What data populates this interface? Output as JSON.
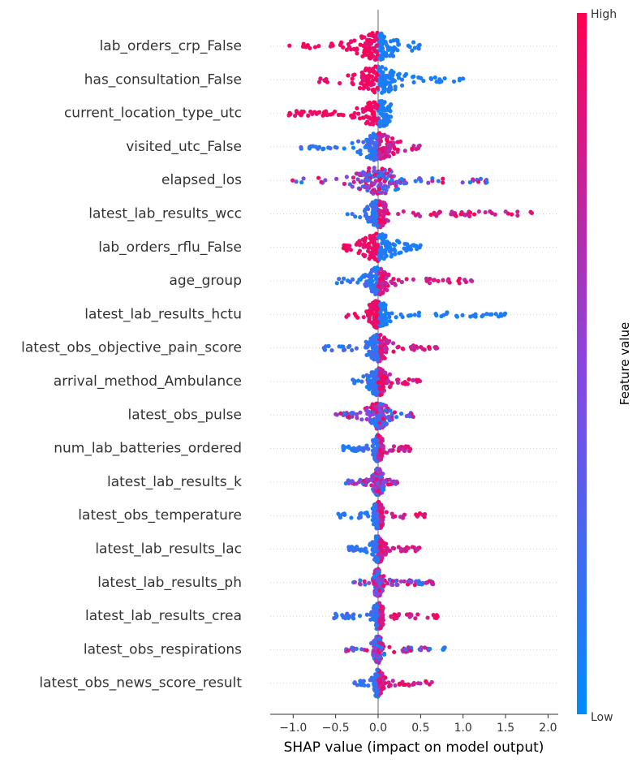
{
  "chart_data": {
    "type": "scatter",
    "subtype": "shap-beeswarm",
    "xlabel": "SHAP value (impact on model output)",
    "xlim": [
      -1.27,
      2.12
    ],
    "xticks": [
      -1.0,
      -0.5,
      0.0,
      0.5,
      1.0,
      1.5,
      2.0
    ],
    "xtick_labels": [
      "−1.0",
      "−0.5",
      "0.0",
      "0.5",
      "1.0",
      "1.5",
      "2.0"
    ],
    "grid": "horizontal dotted per feature",
    "colorbar": {
      "label": "Feature value",
      "high_label": "High",
      "low_label": "Low",
      "high_color": "#ff0051",
      "low_color": "#008bfb"
    },
    "features": [
      {
        "name": "lab_orders_crp_False",
        "range": [
          -1.1,
          0.5
        ],
        "low_side": "right",
        "spread": 0.2
      },
      {
        "name": "has_consultation_False",
        "range": [
          -0.75,
          1.0
        ],
        "low_side": "right",
        "spread": 0.2
      },
      {
        "name": "current_location_type_utc",
        "range": [
          -1.05,
          0.15
        ],
        "low_side": "right",
        "spread": 0.15
      },
      {
        "name": "visited_utc_False",
        "range": [
          -0.95,
          0.5
        ],
        "low_side": "left",
        "spread": 0.15
      },
      {
        "name": "elapsed_los",
        "range": [
          -1.1,
          1.37
        ],
        "low_side": "mixed",
        "spread": 0.2
      },
      {
        "name": "latest_lab_results_wcc",
        "range": [
          -0.5,
          2.0
        ],
        "low_side": "left",
        "spread": 0.1
      },
      {
        "name": "lab_orders_rflu_False",
        "range": [
          -0.45,
          0.5
        ],
        "low_side": "right",
        "spread": 0.15
      },
      {
        "name": "age_group",
        "range": [
          -0.5,
          1.2
        ],
        "low_side": "left",
        "spread": 0.1
      },
      {
        "name": "latest_lab_results_hctu",
        "range": [
          -0.5,
          1.57
        ],
        "low_side": "right",
        "spread": 0.1
      },
      {
        "name": "latest_obs_objective_pain_score",
        "range": [
          -0.65,
          0.7
        ],
        "low_side": "left",
        "spread": 0.1
      },
      {
        "name": "arrival_method_Ambulance",
        "range": [
          -0.3,
          0.5
        ],
        "low_side": "left",
        "spread": 0.1
      },
      {
        "name": "latest_obs_pulse",
        "range": [
          -0.5,
          0.45
        ],
        "low_side": "mixed",
        "spread": 0.1
      },
      {
        "name": "num_lab_batteries_ordered",
        "range": [
          -0.45,
          0.4
        ],
        "low_side": "left",
        "spread": 0.05
      },
      {
        "name": "latest_lab_results_k",
        "range": [
          -0.4,
          0.25
        ],
        "low_side": "mixed",
        "spread": 0.05
      },
      {
        "name": "latest_obs_temperature",
        "range": [
          -0.5,
          0.55
        ],
        "low_side": "left",
        "spread": 0.05
      },
      {
        "name": "latest_lab_results_lac",
        "range": [
          -0.35,
          0.5
        ],
        "low_side": "left",
        "spread": 0.05
      },
      {
        "name": "latest_lab_results_ph",
        "range": [
          -0.3,
          0.65
        ],
        "low_side": "mixed",
        "spread": 0.05
      },
      {
        "name": "latest_lab_results_crea",
        "range": [
          -0.65,
          0.7
        ],
        "low_side": "left",
        "spread": 0.05
      },
      {
        "name": "latest_obs_respirations",
        "range": [
          -0.4,
          0.8
        ],
        "low_side": "mixed",
        "spread": 0.05
      },
      {
        "name": "latest_obs_news_score_result",
        "range": [
          -0.3,
          0.65
        ],
        "low_side": "left",
        "spread": 0.05
      }
    ]
  }
}
